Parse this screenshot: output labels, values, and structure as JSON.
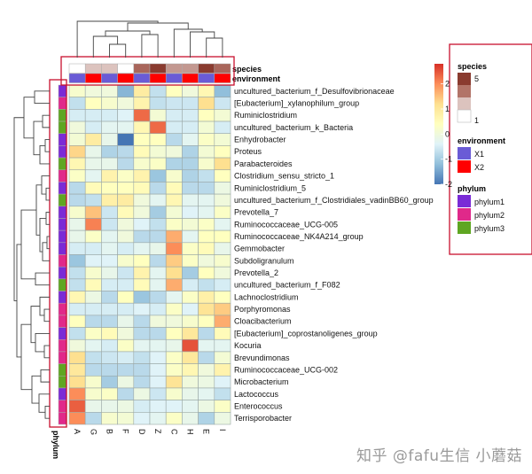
{
  "chart_data": {
    "type": "heatmap",
    "columns": [
      "A",
      "G",
      "B",
      "F",
      "D",
      "Z",
      "C",
      "H",
      "E",
      "I"
    ],
    "rows": [
      "uncultured_bacterium_f_Desulfovibrionaceae",
      "[Eubacterium]_xylanophilum_group",
      "Ruminiclostridium",
      "uncultured_bacterium_k_Bacteria",
      "Enhydrobacter",
      "Proteus",
      "Parabacteroides",
      "Clostridium_sensu_stricto_1",
      "Ruminiclostridium_5",
      "uncultured_bacterium_f_Clostridiales_vadinBB60_group",
      "Prevotella_7",
      "Ruminococcaceae_UCG-005",
      "Ruminococcaceae_NK4A214_group",
      "Gemmobacter",
      "Subdoligranulum",
      "Prevotella_2",
      "uncultured_bacterium_f_F082",
      "Lachnoclostridium",
      "Porphyromonas",
      "Cloacibacterium",
      "[Eubacterium]_coprostanoligenes_group",
      "Kocuria",
      "Brevundimonas",
      "Ruminococcaceae_UCG-002",
      "Microbacterium",
      "Lactococcus",
      "Enterococcus",
      "Terrisporobacter"
    ],
    "values": [
      [
        0.2,
        0.0,
        0.0,
        -1.3,
        0.9,
        -0.7,
        0.4,
        0.0,
        0.6,
        -1.2
      ],
      [
        -0.7,
        0.4,
        0.2,
        0.0,
        0.7,
        -0.7,
        -0.6,
        -0.6,
        1.2,
        -0.6
      ],
      [
        -0.5,
        -0.5,
        -0.5,
        -0.4,
        2.3,
        0.1,
        -0.5,
        -0.5,
        0.4,
        0.1
      ],
      [
        0.0,
        -0.5,
        -0.3,
        -0.3,
        0.6,
        2.3,
        -0.5,
        -0.5,
        0.1,
        -0.5
      ],
      [
        0.1,
        0.9,
        -0.2,
        -2.0,
        0.4,
        0.4,
        -0.8,
        -0.3,
        0.3,
        0.1
      ],
      [
        1.3,
        -0.2,
        -0.9,
        -0.8,
        0.5,
        0.1,
        0.0,
        -0.9,
        0.1,
        0.4
      ],
      [
        0.6,
        -0.2,
        -0.2,
        -0.8,
        0.2,
        0.3,
        -0.9,
        -0.9,
        0.2,
        1.2
      ],
      [
        0.3,
        -0.3,
        0.7,
        0.3,
        0.7,
        -1.1,
        0.2,
        -0.9,
        -0.7,
        0.4
      ],
      [
        -0.8,
        0.5,
        0.4,
        0.4,
        0.5,
        -0.8,
        0.5,
        -0.8,
        -0.8,
        -0.1
      ],
      [
        -0.8,
        -0.7,
        0.8,
        0.9,
        0.0,
        -0.3,
        0.6,
        -0.3,
        -0.3,
        0.0
      ],
      [
        0.2,
        1.5,
        -0.6,
        0.5,
        0.0,
        -1.0,
        0.1,
        -0.4,
        -0.3,
        0.3
      ],
      [
        -0.2,
        2.1,
        -0.6,
        0.0,
        -0.4,
        -0.7,
        0.3,
        0.1,
        0.3,
        -0.3
      ],
      [
        -0.2,
        0.3,
        -0.3,
        0.0,
        -0.8,
        -0.8,
        1.7,
        -0.3,
        0.4,
        0.4
      ],
      [
        -0.5,
        -0.5,
        -0.3,
        -0.5,
        -0.3,
        -0.2,
        2.0,
        0.3,
        0.5,
        -0.2
      ],
      [
        -1.1,
        -0.4,
        -0.4,
        0.2,
        0.4,
        -0.8,
        1.4,
        0.3,
        0.0,
        0.2
      ],
      [
        -0.7,
        0.2,
        -0.2,
        -0.6,
        0.7,
        -0.3,
        1.2,
        -1.0,
        0.4,
        0.0
      ],
      [
        -0.7,
        0.5,
        -0.5,
        -0.5,
        0.5,
        -0.3,
        1.7,
        -0.5,
        -0.7,
        -0.5
      ],
      [
        0.6,
        -0.1,
        -0.8,
        0.4,
        -1.1,
        -0.8,
        -0.3,
        0.3,
        0.8,
        0.4
      ],
      [
        -0.5,
        -0.5,
        -0.5,
        -0.5,
        -0.4,
        -0.5,
        0.3,
        -0.4,
        1.1,
        1.4
      ],
      [
        0.4,
        -0.8,
        -0.8,
        -0.2,
        -0.8,
        0.0,
        0.0,
        0.2,
        0.4,
        1.7
      ],
      [
        -0.7,
        0.3,
        0.5,
        0.0,
        -0.8,
        -0.8,
        0.4,
        1.0,
        -0.8,
        0.5
      ],
      [
        0.0,
        -0.3,
        -0.5,
        0.3,
        -0.3,
        -0.3,
        -0.2,
        2.5,
        -0.3,
        -0.3
      ],
      [
        1.2,
        -0.7,
        -0.6,
        -0.5,
        -0.7,
        -0.4,
        0.3,
        1.0,
        -0.8,
        0.1
      ],
      [
        1.0,
        -0.8,
        -0.8,
        -0.8,
        -0.8,
        -0.4,
        0.3,
        0.6,
        0.0,
        0.7
      ],
      [
        1.2,
        0.2,
        -1.0,
        -0.1,
        -0.8,
        -0.4,
        1.1,
        0.0,
        -0.1,
        -0.4
      ],
      [
        2.0,
        0.2,
        0.3,
        -0.8,
        -0.1,
        -0.6,
        0.2,
        -0.2,
        -0.3,
        -0.7
      ],
      [
        2.4,
        -0.2,
        -0.2,
        -0.1,
        -0.5,
        -0.4,
        -0.4,
        -0.3,
        -0.1,
        0.3
      ],
      [
        2.0,
        -0.8,
        0.2,
        0.1,
        -0.4,
        -0.3,
        0.3,
        -0.2,
        -0.9,
        -0.1
      ]
    ],
    "color_scale": {
      "ticks": [
        "-2",
        "-1",
        "0",
        "1",
        "2"
      ],
      "range": [
        -2,
        2.8
      ],
      "colors": [
        "#4575B4",
        "#91BFDB",
        "#E0F3F8",
        "#FFFFBF",
        "#FEE090",
        "#FC8D59",
        "#D73027"
      ]
    },
    "row_annotation": {
      "title": "phylum",
      "values": [
        "phylum1",
        "phylum2",
        "phylum3",
        "phylum3",
        "phylum1",
        "phylum1",
        "phylum3",
        "phylum2",
        "phylum1",
        "phylum3",
        "phylum1",
        "phylum1",
        "phylum1",
        "phylum1",
        "phylum2",
        "phylum1",
        "phylum3",
        "phylum1",
        "phylum2",
        "phylum2",
        "phylum1",
        "phylum2",
        "phylum2",
        "phylum3",
        "phylum3",
        "phylum1",
        "phylum2",
        "phylum2"
      ]
    },
    "column_annotations": {
      "species": {
        "title": "species",
        "values": [
          1,
          2,
          2,
          1,
          4,
          5,
          3,
          3,
          5,
          4
        ]
      },
      "environment": {
        "title": "environment",
        "values": [
          "X1",
          "X2",
          "X1",
          "X2",
          "X1",
          "X2",
          "X1",
          "X2",
          "X1",
          "X2"
        ]
      }
    },
    "legend": {
      "placement": "right",
      "species": {
        "title": "species",
        "swatches": [
          "#8A3B2F",
          "#B27468",
          "#DCC3BE",
          "#FFFFFF"
        ],
        "top_label": "5",
        "bottom_label": "1"
      },
      "environment": {
        "title": "environment",
        "items": [
          {
            "label": "X1",
            "color": "#6A5BD6"
          },
          {
            "label": "X2",
            "color": "#FF0000"
          }
        ]
      },
      "phylum": {
        "title": "phylum",
        "items": [
          {
            "label": "phylum1",
            "color": "#7A2BD6"
          },
          {
            "label": "phylum2",
            "color": "#E0298A"
          },
          {
            "label": "phylum3",
            "color": "#5FA622"
          }
        ]
      }
    },
    "species_palette": {
      "1": "#FFFFFF",
      "2": "#DCC3BE",
      "3": "#C39890",
      "4": "#A9665B",
      "5": "#8A3B2F"
    },
    "highlight_color": "#C8102E"
  },
  "watermark": "知乎 @fafu生信 小蘑菇"
}
